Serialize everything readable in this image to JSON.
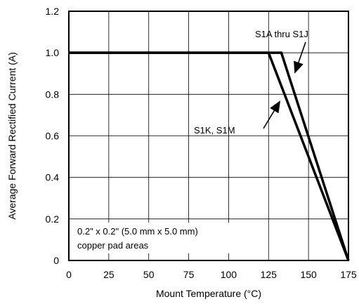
{
  "chart_data": {
    "type": "line",
    "xlabel": "Mount Temperature (°C)",
    "ylabel": "Average Forward Rectified Current (A)",
    "xlim": [
      0,
      175
    ],
    "ylim": [
      0,
      1.2
    ],
    "xticks": [
      0,
      25,
      50,
      75,
      100,
      125,
      150,
      175
    ],
    "yticks": [
      0,
      0.2,
      0.4,
      0.6,
      0.8,
      1.0,
      1.2
    ],
    "ytick_labels": [
      "0",
      "0.2",
      "0.4",
      "0.6",
      "0.8",
      "1.0",
      "1.2"
    ],
    "grid": true,
    "series": [
      {
        "name": "S1A thru S1J",
        "x": [
          0,
          133,
          175
        ],
        "y": [
          1.0,
          1.0,
          0
        ]
      },
      {
        "name": "S1K, S1M",
        "x": [
          0,
          125,
          175
        ],
        "y": [
          1.0,
          1.0,
          0
        ]
      }
    ],
    "annotations": {
      "note_line1": "0.2\" x 0.2\" (5.0 mm x 5.0 mm)",
      "note_line2": "copper pad areas"
    },
    "colors": {
      "line": "#000000",
      "grid": "#000000",
      "background": "#ffffff"
    }
  }
}
